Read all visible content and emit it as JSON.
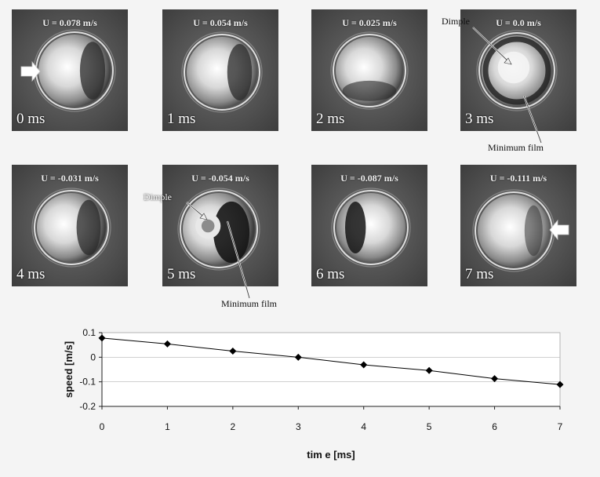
{
  "frames": [
    {
      "velocity": "U = 0.078 m/s",
      "time": "0 ms",
      "arrow": "right"
    },
    {
      "velocity": "U = 0.054 m/s",
      "time": "1 ms"
    },
    {
      "velocity": "U = 0.025 m/s",
      "time": "2 ms"
    },
    {
      "velocity": "U = 0.0 m/s",
      "time": "3 ms"
    },
    {
      "velocity": "U = -0.031 m/s",
      "time": "4 ms"
    },
    {
      "velocity": "U = -0.054 m/s",
      "time": "5 ms"
    },
    {
      "velocity": "U = -0.087 m/s",
      "time": "6 ms"
    },
    {
      "velocity": "U = -0.111 m/s",
      "time": "7 ms",
      "arrow": "left"
    }
  ],
  "annotations": {
    "dimple_top": "Dimple",
    "min_film_top": "Minimum film",
    "dimple_bottom": "Dimple",
    "min_film_bottom": "Minimum film"
  },
  "chart_data": {
    "type": "line",
    "x": [
      0,
      1,
      2,
      3,
      4,
      5,
      6,
      7
    ],
    "values": [
      0.078,
      0.054,
      0.025,
      0.0,
      -0.031,
      -0.054,
      -0.087,
      -0.111
    ],
    "xlabel": "tim e [ms]",
    "ylabel": "speed [m/s]",
    "xlim": [
      0,
      7
    ],
    "ylim": [
      -0.2,
      0.1
    ],
    "xticks": [
      "0",
      "1",
      "2",
      "3",
      "4",
      "5",
      "6",
      "7"
    ],
    "yticks": [
      "0.1",
      "0",
      "-0.1",
      "-0.2"
    ],
    "grid": "horizontal",
    "marker": "diamond"
  }
}
